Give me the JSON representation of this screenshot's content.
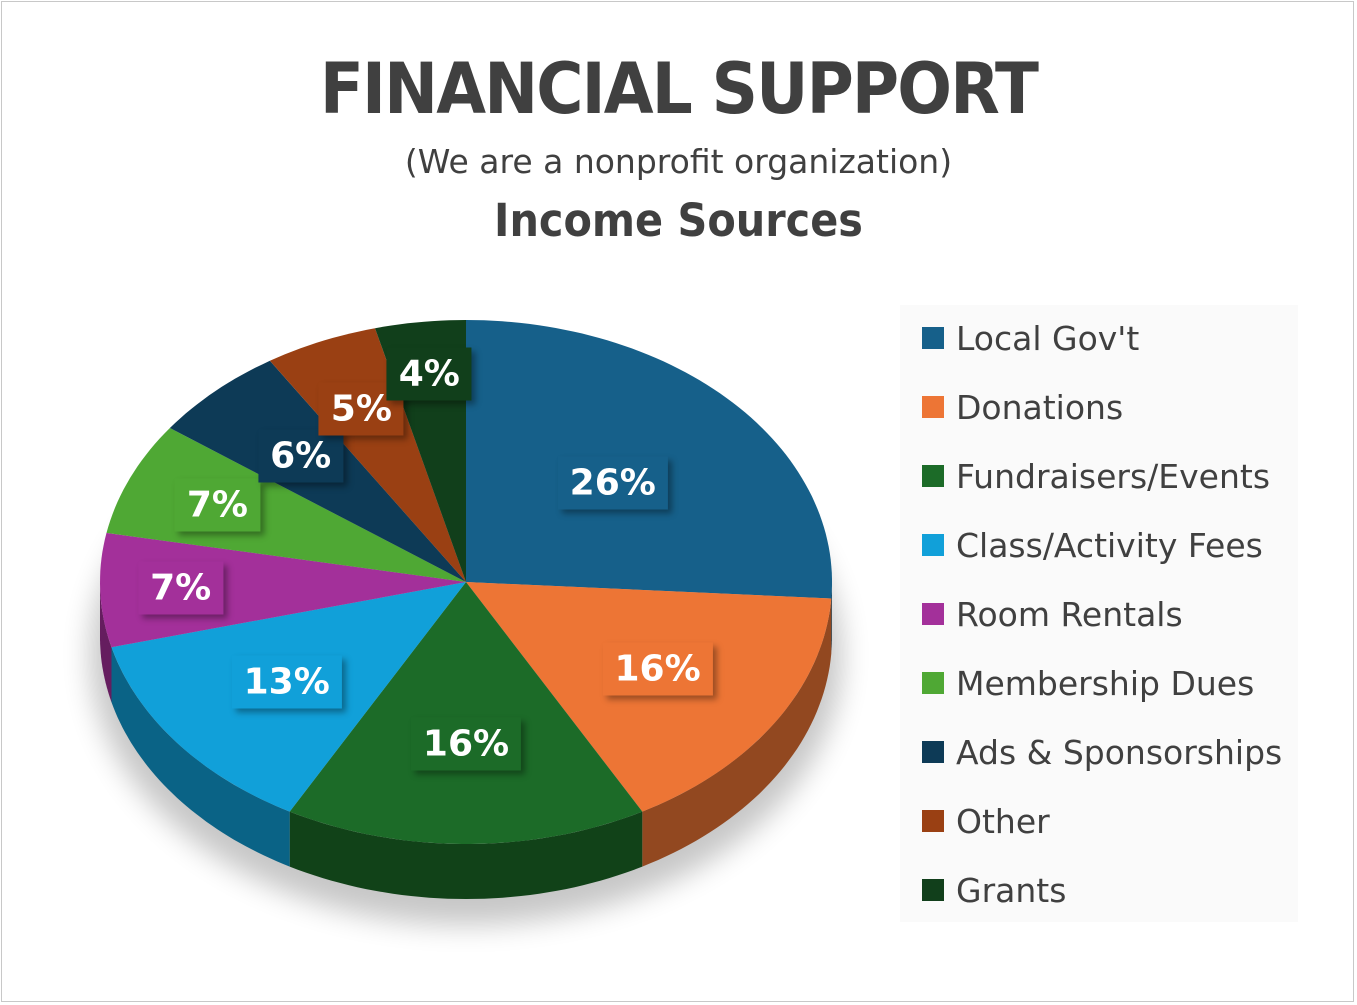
{
  "header": {
    "title": "FINANCIAL SUPPORT",
    "subtitle": "(We are a nonprofit organization)",
    "chart_title": "Income Sources"
  },
  "chart_data": {
    "type": "pie",
    "style": "3d",
    "title": "Income Sources",
    "legend_position": "right",
    "categories": [
      "Local Gov't",
      "Donations",
      "Fundraisers/Events",
      "Class/Activity Fees",
      "Room Rentals",
      "Membership Dues",
      "Ads & Sponsorships",
      "Other",
      "Grants"
    ],
    "values": [
      26,
      16,
      16,
      13,
      7,
      7,
      6,
      5,
      4
    ],
    "labels": [
      "26%",
      "16%",
      "16%",
      "13%",
      "7%",
      "7%",
      "6%",
      "5%",
      "4%"
    ],
    "colors": [
      "#16608a",
      "#ed7535",
      "#1c6b28",
      "#11a0d9",
      "#a3309a",
      "#4fa834",
      "#0d3a56",
      "#9a4013",
      "#113f1b"
    ]
  }
}
